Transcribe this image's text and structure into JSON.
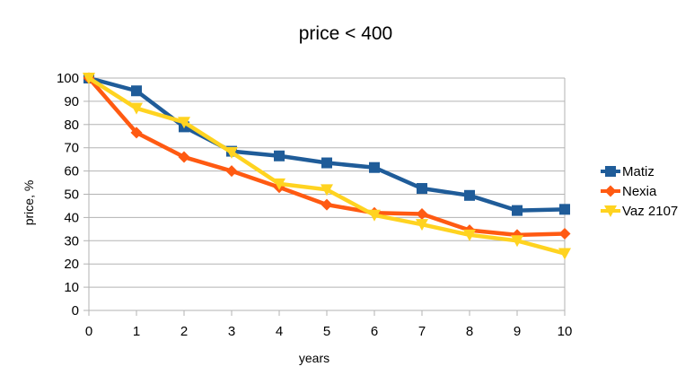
{
  "chart_data": {
    "type": "line",
    "title": "price < 400",
    "xlabel": "years",
    "ylabel": "price, %",
    "x": [
      0,
      1,
      2,
      3,
      4,
      5,
      6,
      7,
      8,
      9,
      10
    ],
    "xlim": [
      0,
      10
    ],
    "ylim": [
      0,
      100
    ],
    "yticks": [
      0,
      10,
      20,
      30,
      40,
      50,
      60,
      70,
      80,
      90,
      100
    ],
    "grid": "horizontal",
    "legend": "right",
    "series": [
      {
        "name": "Matiz",
        "color": "#1f5c99",
        "marker": "square",
        "values": [
          100,
          94.5,
          79,
          68.5,
          66.5,
          63.5,
          61.5,
          52.5,
          49.5,
          43,
          43.5
        ]
      },
      {
        "name": "Nexia",
        "color": "#ff5a12",
        "marker": "diamond",
        "values": [
          100,
          76.5,
          66,
          60,
          53,
          45.5,
          42,
          41.5,
          34.5,
          32.5,
          33
        ]
      },
      {
        "name": "Vaz 2107",
        "color": "#ffd320",
        "marker": "triangle-down",
        "values": [
          100,
          87,
          81,
          68,
          54.5,
          52,
          41,
          37,
          32.5,
          30,
          24.5
        ]
      }
    ]
  }
}
